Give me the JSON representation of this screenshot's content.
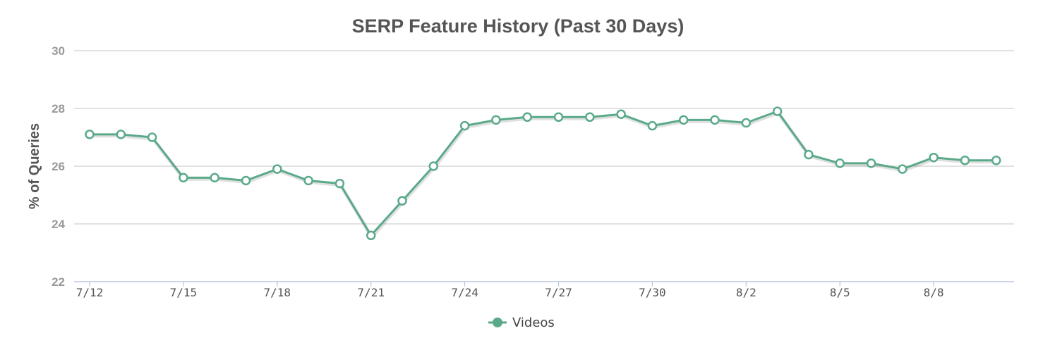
{
  "chart_data": {
    "type": "line",
    "title": "SERP Feature History (Past 30 Days)",
    "ylabel": "% of Queries",
    "xlabel": "",
    "ylim": [
      22,
      30
    ],
    "yticks": [
      "22",
      "24",
      "26",
      "28",
      "30"
    ],
    "x": [
      "7/12",
      "7/13",
      "7/14",
      "7/15",
      "7/16",
      "7/17",
      "7/18",
      "7/19",
      "7/20",
      "7/21",
      "7/22",
      "7/23",
      "7/24",
      "7/25",
      "7/26",
      "7/27",
      "7/28",
      "7/29",
      "7/30",
      "7/31",
      "8/1",
      "8/2",
      "8/3",
      "8/4",
      "8/5",
      "8/6",
      "8/7",
      "8/8",
      "8/9",
      "8/10"
    ],
    "xtick_labels": [
      "7/12",
      "7/15",
      "7/18",
      "7/21",
      "7/24",
      "7/27",
      "7/30",
      "8/2",
      "8/5",
      "8/8"
    ],
    "series": [
      {
        "name": "Videos",
        "color": "#5aaa8a",
        "values": [
          27.1,
          27.1,
          27.0,
          25.6,
          25.6,
          25.5,
          25.9,
          25.5,
          25.4,
          23.6,
          24.8,
          26.0,
          27.4,
          27.6,
          27.7,
          27.7,
          27.7,
          27.8,
          27.4,
          27.6,
          27.6,
          27.5,
          27.9,
          26.4,
          26.1,
          26.1,
          25.9,
          26.3,
          26.2,
          26.2
        ]
      }
    ],
    "grid": true,
    "legend_position": "bottom-center"
  }
}
